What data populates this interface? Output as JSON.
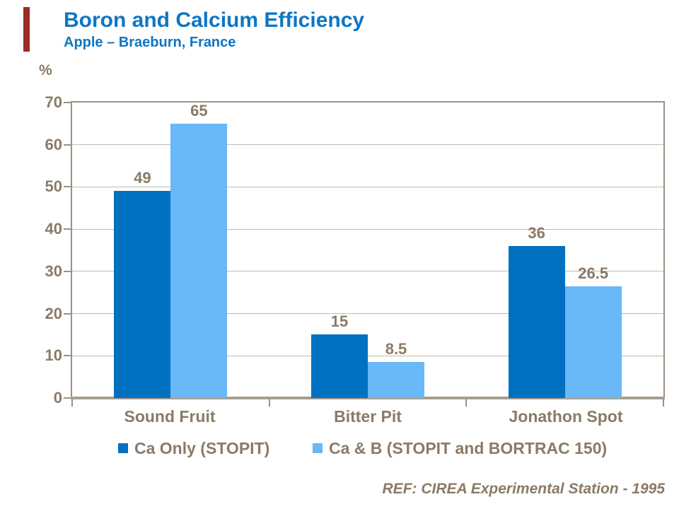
{
  "slide": {
    "title": "Boron and Calcium Efficiency",
    "subtitle": "Apple – Braeburn, France",
    "reference": "REF: CIREA Experimental Station - 1995"
  },
  "colors": {
    "title_blue": "#0D76C4",
    "series1_blue": "#0070C0",
    "series2_blue": "#69B8F8",
    "text_brown": "#8A7A66",
    "gridline": "#C2BAAE",
    "plot_border": "#9B9184",
    "axis_line": "#A69D90",
    "accent_bar_red": "#9A2B25"
  },
  "chart_data": {
    "type": "bar",
    "title": "Boron and Calcium Efficiency",
    "subtitle": "Apple – Braeburn, France",
    "xlabel": "",
    "ylabel": "%",
    "ylim": [
      0,
      70
    ],
    "yticks": [
      0,
      10,
      20,
      30,
      40,
      50,
      60,
      70
    ],
    "grid": true,
    "legend_position": "bottom",
    "categories": [
      "Sound Fruit",
      "Bitter Pit",
      "Jonathon Spot"
    ],
    "series": [
      {
        "name": "Ca Only (STOPIT)",
        "color": "#0070C0",
        "values": [
          49,
          15,
          36
        ]
      },
      {
        "name": "Ca & B (STOPIT and BORTRAC 150)",
        "color": "#69B8F8",
        "values": [
          65,
          8.5,
          26.5
        ]
      }
    ]
  }
}
